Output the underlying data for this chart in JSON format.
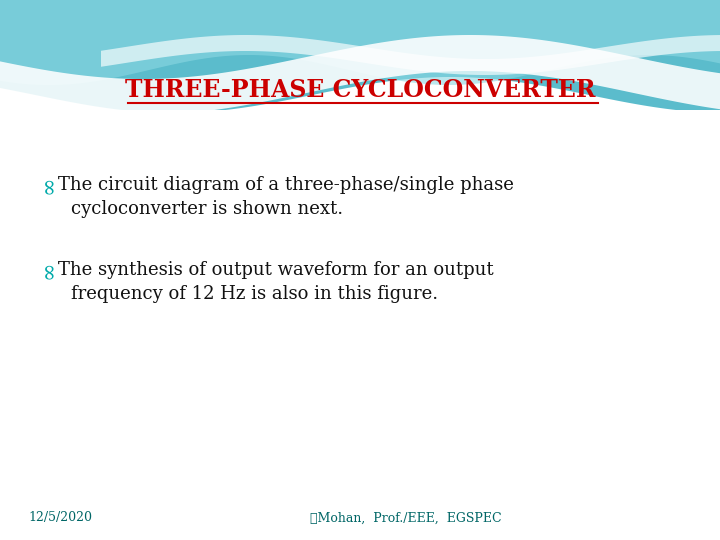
{
  "title": "THREE-PHASE CYCLOCONVERTER",
  "title_color": "#CC0000",
  "title_fontsize": 17,
  "bullet_color": "#00AAAA",
  "bullet1_line1": "↰The circuit diagram of a three-phase/single phase",
  "bullet1_line2": "   cycloconverter is shown next.",
  "bullet2_line1": "↰The synthesis of output waveform for an output",
  "bullet2_line2": "   frequency of 12 Hz is also in this figure.",
  "footer_left": "12/5/2020",
  "footer_center": "䵍Mohan,  Prof./EEE,  EGSPEC",
  "footer_color": "#006666",
  "text_color": "#111111",
  "body_bg": "#ffffff",
  "wave_teal1": "#5bbccc",
  "wave_teal2": "#7dcfda",
  "wave_light": "#b8e8ee",
  "font_family": "serif",
  "footer_fontsize": 9,
  "body_fontsize": 13
}
